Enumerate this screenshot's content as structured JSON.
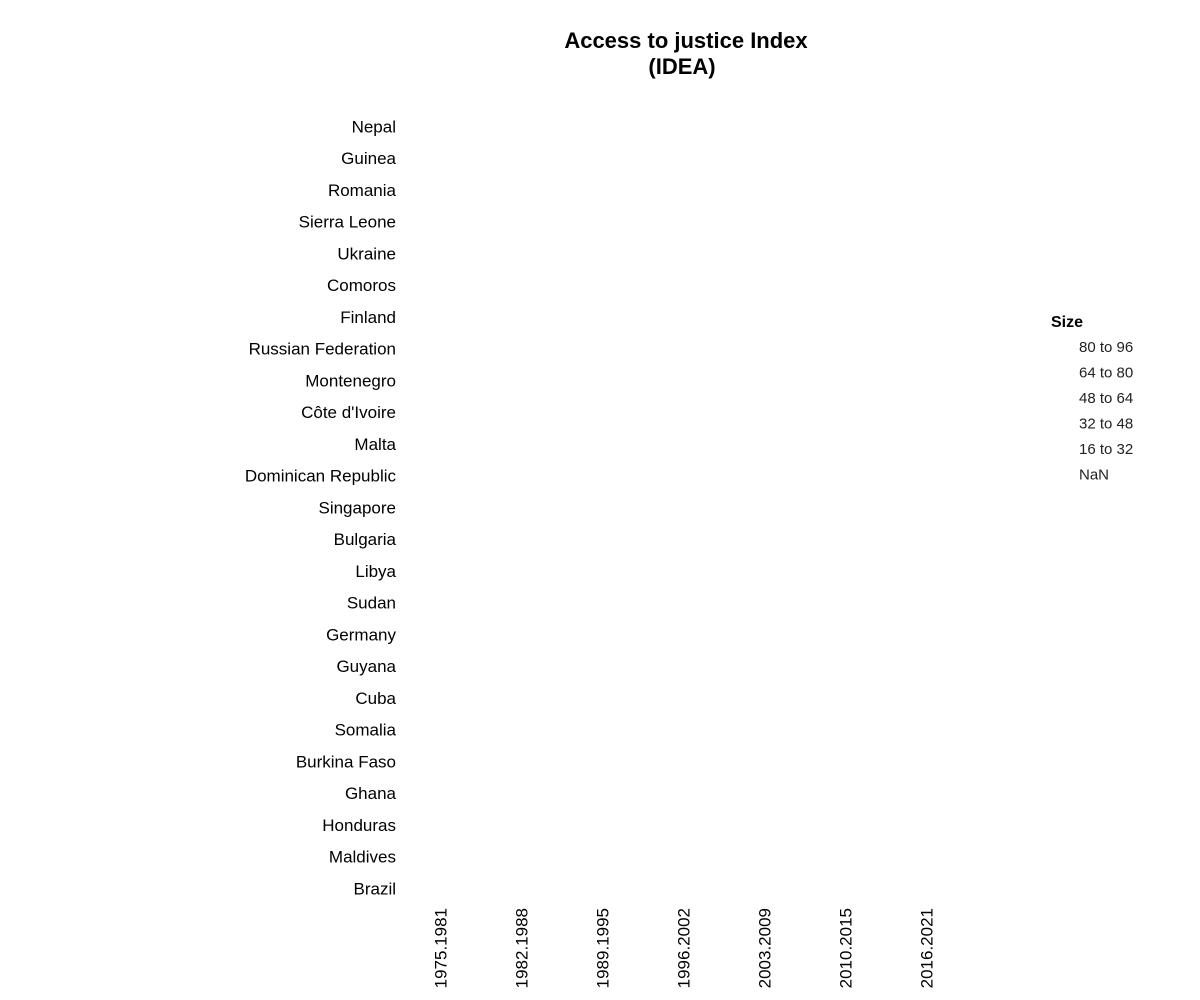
{
  "chart_data": {
    "type": "bubble",
    "title": [
      "Access to justice Index",
      "(IDEA)"
    ],
    "categories": [
      "1975.1981",
      "1982.1988",
      "1989.1995",
      "1996.2002",
      "2003.2009",
      "2010.2015",
      "2016.2021"
    ],
    "y_categories": [
      "Nepal",
      "Guinea",
      "Romania",
      "Sierra Leone",
      "Ukraine",
      "Comoros",
      "Finland",
      "Russian Federation",
      "Montenegro",
      "Côte d'Ivoire",
      "Malta",
      "Dominican Republic",
      "Singapore",
      "Bulgaria",
      "Libya",
      "Sudan",
      "Germany",
      "Guyana",
      "Cuba",
      "Somalia",
      "Burkina Faso",
      "Ghana",
      "Honduras",
      "Maldives",
      "Brazil"
    ],
    "legend_title": "Size",
    "legend_labels": [
      "80 to 96",
      "64 to 80",
      "48 to 64",
      "32 to 48",
      "16 to 32",
      "NaN"
    ]
  }
}
